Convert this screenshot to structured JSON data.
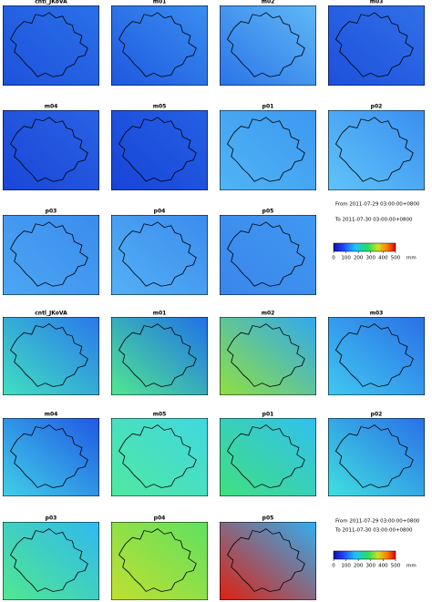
{
  "groups": [
    {
      "panels": [
        "cntl_JKoVA",
        "m01",
        "m02",
        "m03",
        "m04",
        "m05",
        "p01",
        "p02",
        "p03",
        "p04",
        "p05"
      ],
      "period": {
        "from": "From 2011-07-29 03:00:00+0800",
        "to": "To 2011-07-30 03:00:00+0800"
      },
      "colorbar": {
        "ticks": [
          0,
          100,
          200,
          300,
          400,
          500
        ],
        "unit": "mm"
      }
    },
    {
      "panels": [
        "cntl_JKoVA",
        "m01",
        "m02",
        "m03",
        "m04",
        "m05",
        "p01",
        "p02",
        "p03",
        "p04",
        "p05"
      ],
      "period": {
        "from": "From 2011-07-29 03:00:00+0800",
        "to": "To 2011-07-30 03:00:00+0800"
      },
      "colorbar": {
        "ticks": [
          0,
          100,
          200,
          300,
          400,
          500
        ],
        "unit": "mm"
      }
    }
  ]
}
